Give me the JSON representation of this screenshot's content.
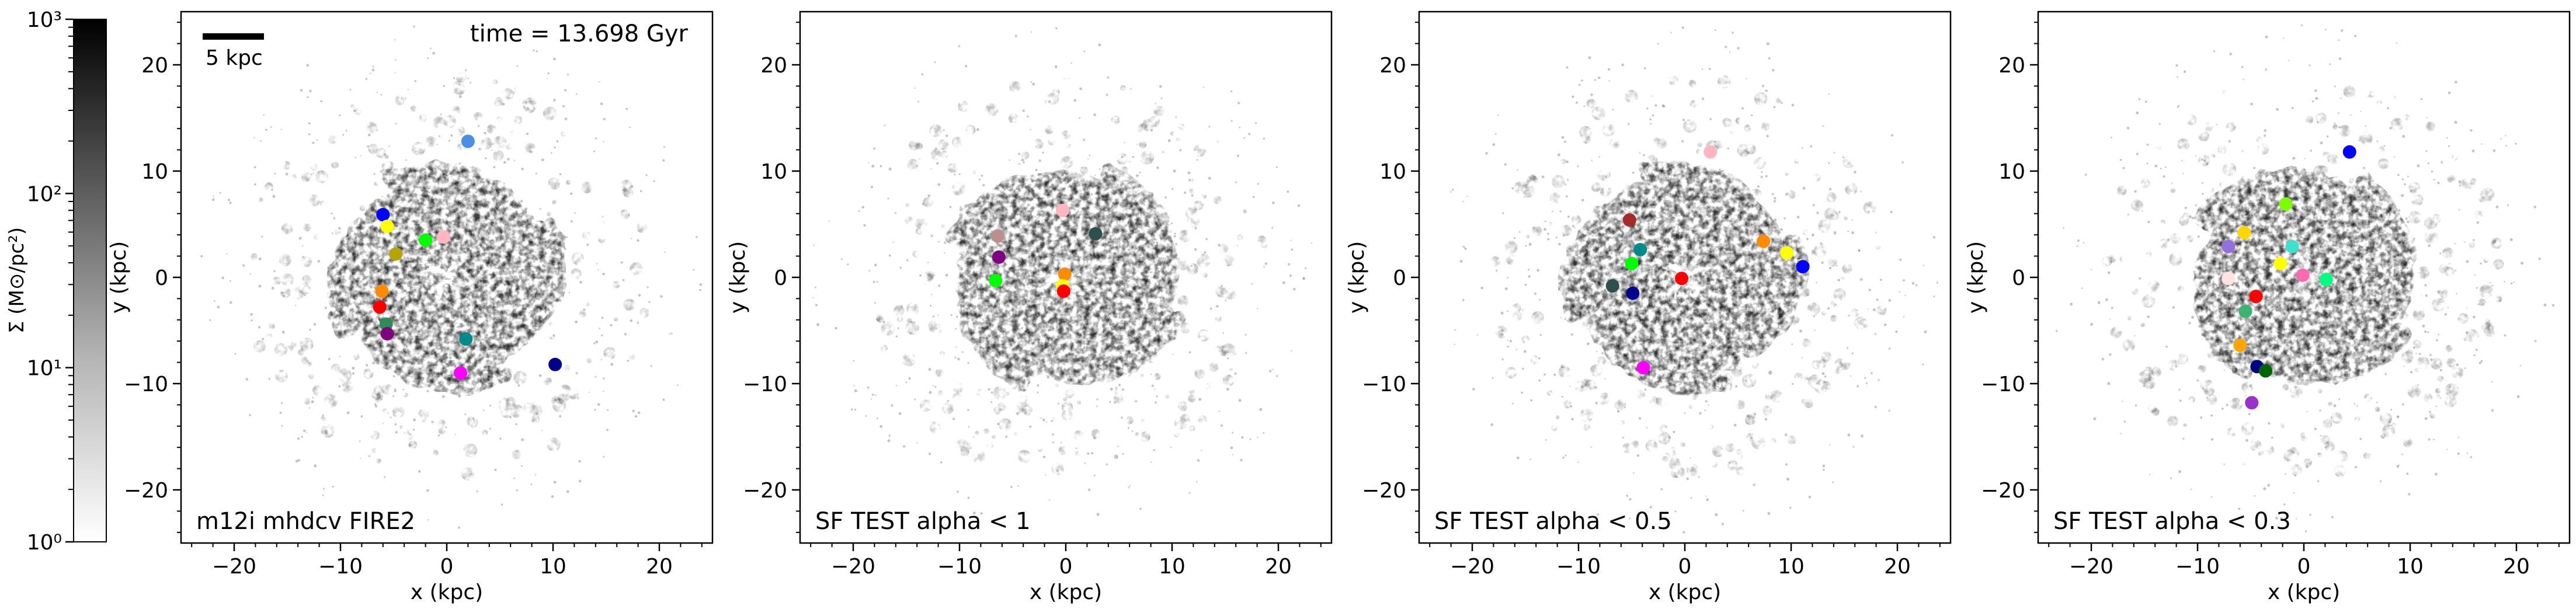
{
  "figure": {
    "time_label": "time = 13.698 Gyr",
    "scalebar_label": "5 kpc",
    "colorbar": {
      "label": "Σ (M⊙/pc²)",
      "ticks": [
        "10⁰",
        "10¹",
        "10²",
        "10³"
      ],
      "scale": "log",
      "range": [
        1,
        1000
      ],
      "colormap": "white-to-black"
    }
  },
  "chart_data": [
    {
      "type": "scatter",
      "title": "m12i mhdcv FIRE2",
      "xlabel": "x (kpc)",
      "ylabel": "y (kpc)",
      "xlim": [
        -25,
        25
      ],
      "ylim": [
        -25,
        25
      ],
      "xticks": [
        "−20",
        "−10",
        "0",
        "10",
        "20"
      ],
      "yticks": [
        "−20",
        "−10",
        "0",
        "10",
        "20"
      ],
      "grid": false,
      "points": [
        {
          "x": 2.0,
          "y": 12.8,
          "color": "#4a90e2"
        },
        {
          "x": -6.0,
          "y": 5.9,
          "color": "#0000ff"
        },
        {
          "x": -5.6,
          "y": 4.8,
          "color": "#ffff00"
        },
        {
          "x": -4.8,
          "y": 2.2,
          "color": "#b5a300"
        },
        {
          "x": -2.0,
          "y": 3.5,
          "color": "#00ff00"
        },
        {
          "x": -0.3,
          "y": 3.8,
          "color": "#ffb6c1"
        },
        {
          "x": -6.1,
          "y": -1.3,
          "color": "#ff8c00"
        },
        {
          "x": -6.3,
          "y": -2.8,
          "color": "#ff0000"
        },
        {
          "x": -5.7,
          "y": -4.4,
          "color": "#2e8b57"
        },
        {
          "x": -5.6,
          "y": -5.3,
          "color": "#800080"
        },
        {
          "x": 1.8,
          "y": -5.8,
          "color": "#008b8b"
        },
        {
          "x": 10.2,
          "y": -8.2,
          "color": "#00008b"
        },
        {
          "x": 1.3,
          "y": -9.0,
          "color": "#ff00ff"
        }
      ]
    },
    {
      "type": "scatter",
      "title": "SF TEST alpha < 1",
      "xlabel": "x (kpc)",
      "ylabel": "y (kpc)",
      "xlim": [
        -25,
        25
      ],
      "ylim": [
        -25,
        25
      ],
      "xticks": [
        "−20",
        "−10",
        "0",
        "10",
        "20"
      ],
      "yticks": [
        "−20",
        "−10",
        "0",
        "10",
        "20"
      ],
      "grid": false,
      "points": [
        {
          "x": -0.3,
          "y": 6.3,
          "color": "#ffb6c1"
        },
        {
          "x": 2.8,
          "y": 4.1,
          "color": "#2f4f4f"
        },
        {
          "x": -6.4,
          "y": 3.9,
          "color": "#bc8f8f"
        },
        {
          "x": -6.3,
          "y": 1.9,
          "color": "#800080"
        },
        {
          "x": -6.6,
          "y": -0.3,
          "color": "#00ff00"
        },
        {
          "x": -0.1,
          "y": 0.3,
          "color": "#ff8c00"
        },
        {
          "x": -0.3,
          "y": -0.8,
          "color": "#ffff00"
        },
        {
          "x": -0.2,
          "y": -1.3,
          "color": "#ff0000"
        }
      ]
    },
    {
      "type": "scatter",
      "title": "SF TEST alpha < 0.5",
      "xlabel": "x (kpc)",
      "ylabel": "y (kpc)",
      "xlim": [
        -25,
        25
      ],
      "ylim": [
        -25,
        25
      ],
      "xticks": [
        "−20",
        "−10",
        "0",
        "10",
        "20"
      ],
      "yticks": [
        "−20",
        "−10",
        "0",
        "10",
        "20"
      ],
      "grid": false,
      "points": [
        {
          "x": 2.4,
          "y": 11.8,
          "color": "#ffb6c1"
        },
        {
          "x": -5.2,
          "y": 5.4,
          "color": "#a52a2a"
        },
        {
          "x": -4.2,
          "y": 2.6,
          "color": "#008b8b"
        },
        {
          "x": -5.0,
          "y": 1.3,
          "color": "#00ff00"
        },
        {
          "x": 7.4,
          "y": 3.4,
          "color": "#ff8c00"
        },
        {
          "x": 9.6,
          "y": 2.3,
          "color": "#ffff00"
        },
        {
          "x": 11.1,
          "y": 1.0,
          "color": "#0000ff"
        },
        {
          "x": -0.3,
          "y": -0.1,
          "color": "#ff0000"
        },
        {
          "x": -6.8,
          "y": -0.8,
          "color": "#2f4f4f"
        },
        {
          "x": -4.9,
          "y": -1.5,
          "color": "#00008b"
        },
        {
          "x": -3.9,
          "y": -8.5,
          "color": "#ff00ff"
        }
      ]
    },
    {
      "type": "scatter",
      "title": "SF TEST alpha < 0.3",
      "xlabel": "x (kpc)",
      "ylabel": "y (kpc)",
      "xlim": [
        -25,
        25
      ],
      "ylim": [
        -25,
        25
      ],
      "xticks": [
        "−20",
        "−10",
        "0",
        "10",
        "20"
      ],
      "yticks": [
        "−20",
        "−10",
        "0",
        "10",
        "20"
      ],
      "grid": false,
      "points": [
        {
          "x": 4.3,
          "y": 11.8,
          "color": "#0000ff"
        },
        {
          "x": -1.7,
          "y": 6.9,
          "color": "#7cfc00"
        },
        {
          "x": -5.6,
          "y": 4.2,
          "color": "#ffd700"
        },
        {
          "x": -7.1,
          "y": 2.9,
          "color": "#9370db"
        },
        {
          "x": -1.1,
          "y": 2.9,
          "color": "#40e0d0"
        },
        {
          "x": -2.2,
          "y": 1.3,
          "color": "#ffff00"
        },
        {
          "x": -0.1,
          "y": 0.2,
          "color": "#ff69b4"
        },
        {
          "x": 2.1,
          "y": -0.2,
          "color": "#00ff7f"
        },
        {
          "x": -7.1,
          "y": -0.1,
          "color": "#ffe4e1"
        },
        {
          "x": -4.5,
          "y": -1.8,
          "color": "#ff0000"
        },
        {
          "x": -5.5,
          "y": -3.2,
          "color": "#3cb371"
        },
        {
          "x": -6.0,
          "y": -6.4,
          "color": "#ffa500"
        },
        {
          "x": -4.4,
          "y": -8.4,
          "color": "#000080"
        },
        {
          "x": -3.6,
          "y": -8.8,
          "color": "#006400"
        },
        {
          "x": -4.9,
          "y": -11.8,
          "color": "#9932cc"
        }
      ]
    }
  ]
}
